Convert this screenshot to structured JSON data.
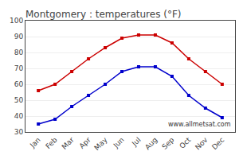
{
  "chart_data": {
    "type": "line",
    "title": "Montgomery : temperatures (°F)",
    "categories": [
      "Jan",
      "Feb",
      "Mar",
      "Apr",
      "May",
      "Jun",
      "Jul",
      "Aug",
      "Sep",
      "Oct",
      "Nov",
      "Dec"
    ],
    "series": [
      {
        "color": "#cc0000",
        "values": [
          56,
          60,
          68,
          76,
          83,
          89,
          91,
          91,
          86,
          76,
          68,
          60
        ]
      },
      {
        "color": "#0000cc",
        "values": [
          35,
          38,
          46,
          53,
          60,
          68,
          71,
          71,
          65,
          53,
          45,
          39
        ]
      }
    ],
    "marker": "square",
    "ylim": [
      30,
      100
    ],
    "yticks": [
      30,
      40,
      50,
      60,
      70,
      80,
      90,
      100
    ],
    "grid": true,
    "annotations": [
      "www.allmetsat.com"
    ]
  }
}
